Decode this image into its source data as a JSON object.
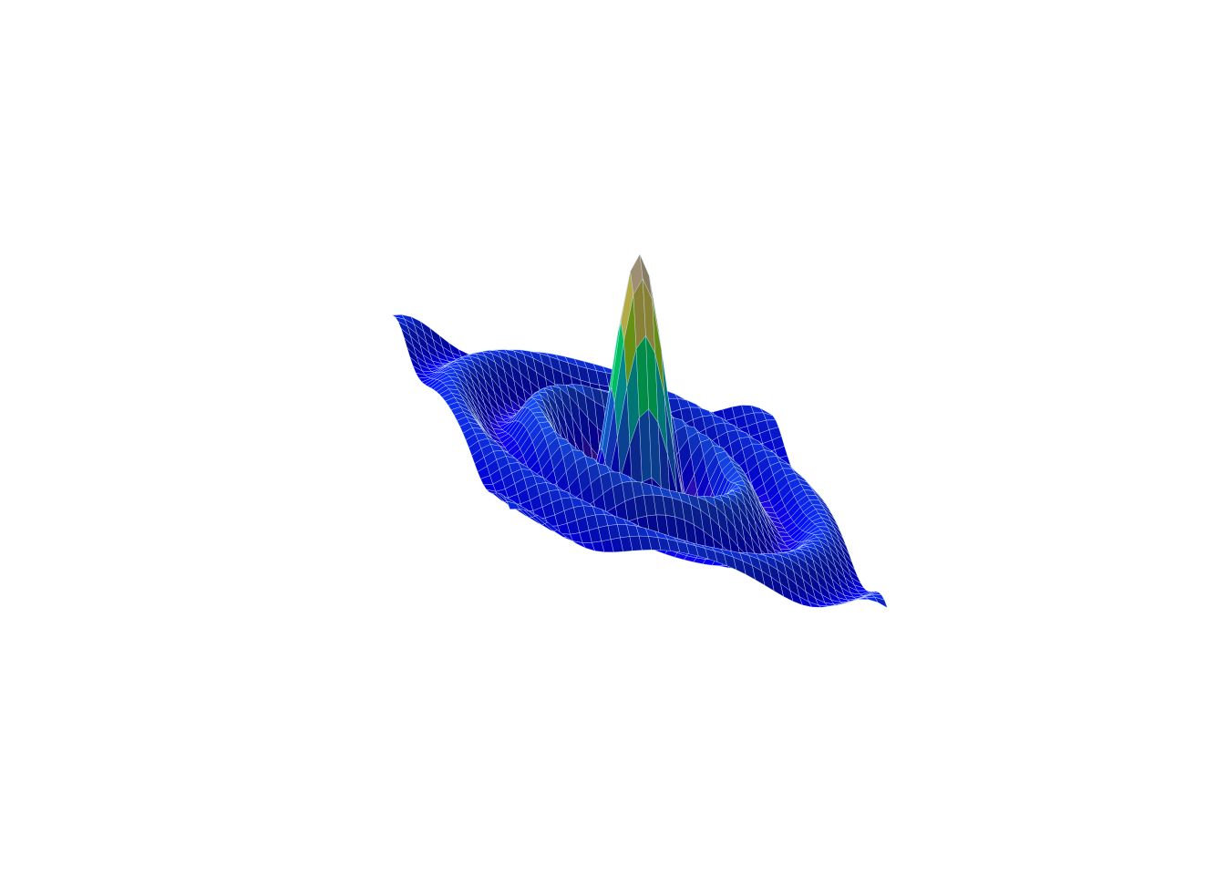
{
  "chart_data": {
    "type": "surface",
    "function": "sin(r)/r",
    "x_range": [
      -15,
      15
    ],
    "y_range": [
      -15,
      15
    ],
    "z_range": [
      -0.22,
      1.0
    ],
    "grid_points": 41,
    "colormap": [
      "#8a2be2",
      "#0000ff",
      "#1a55ff",
      "#00bfff",
      "#00ff7f",
      "#ffff00",
      "#f5deb3",
      "#ffe4b5"
    ],
    "edge_color": "#cfe3ff",
    "axes_visible": false,
    "grid": false,
    "legend": "none",
    "title": "",
    "xlabel": "",
    "ylabel": "",
    "zlabel": ""
  }
}
